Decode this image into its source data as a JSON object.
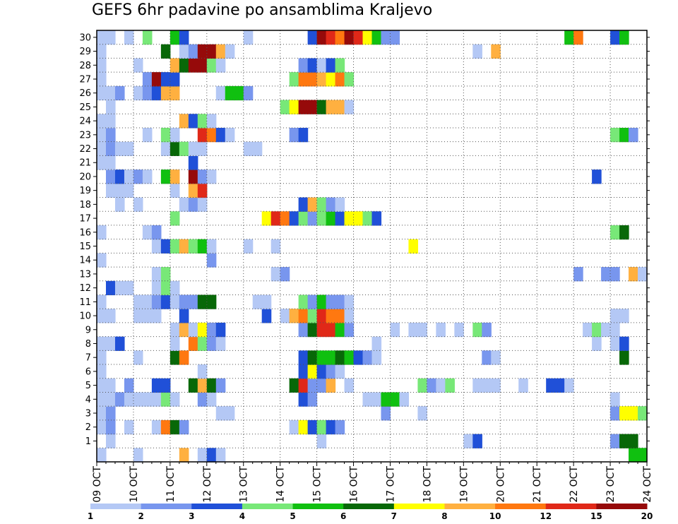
{
  "chart_data": {
    "type": "heatmap",
    "title": "GEFS 6hr padavine po ansamblima Kraljevo",
    "xlabel": "",
    "ylabel": "",
    "x_ticks": [
      "09 OCT",
      "10 OCT",
      "11 OCT",
      "12 OCT",
      "13 OCT",
      "14 OCT",
      "15 OCT",
      "16 OCT",
      "17 OCT",
      "18 OCT",
      "19 OCT",
      "20 OCT",
      "21 OCT",
      "22 OCT",
      "23 OCT",
      "24 OCT"
    ],
    "y_ticks": [
      1,
      2,
      3,
      4,
      5,
      6,
      7,
      8,
      9,
      10,
      11,
      12,
      13,
      14,
      15,
      16,
      17,
      18,
      19,
      20,
      21,
      22,
      23,
      24,
      25,
      26,
      27,
      28,
      29,
      30
    ],
    "x_range": [
      "09 OCT 00Z",
      "24 OCT 00Z"
    ],
    "time_step_hours": 6,
    "grid": "dotted",
    "colorbar": {
      "position": "bottom",
      "labels": [
        "1",
        "2",
        "3",
        "4",
        "5",
        "6",
        "7",
        "8",
        "10",
        "12",
        "15",
        "20"
      ],
      "colors": [
        "#b4c8f5",
        "#7896ee",
        "#2050d8",
        "#78e878",
        "#10c010",
        "#086808",
        "#ffff00",
        "#ffb040",
        "#ff7810",
        "#e02818",
        "#960a0a"
      ]
    },
    "members": {
      "30": [
        [
          0,
          2,
          1
        ],
        [
          3,
          1
        ],
        [
          5,
          4
        ],
        [
          8,
          5
        ],
        [
          9,
          3
        ],
        [
          16,
          1
        ],
        [
          23,
          3
        ],
        [
          24,
          11
        ],
        [
          25,
          10
        ],
        [
          26,
          9
        ],
        [
          27,
          11
        ],
        [
          28,
          10
        ],
        [
          29,
          7
        ],
        [
          30,
          5
        ],
        [
          31,
          2
        ],
        [
          32,
          2
        ],
        [
          51,
          5
        ],
        [
          52,
          9
        ],
        [
          56,
          3
        ],
        [
          57,
          5
        ]
      ],
      "29": [
        [
          0,
          1
        ],
        [
          7,
          6
        ],
        [
          9,
          1
        ],
        [
          10,
          2
        ],
        [
          11,
          11
        ],
        [
          12,
          11
        ],
        [
          13,
          8
        ],
        [
          14,
          1
        ],
        [
          41,
          1
        ],
        [
          43,
          8
        ]
      ],
      "28": [
        [
          0,
          1
        ],
        [
          4,
          1
        ],
        [
          8,
          8
        ],
        [
          9,
          6
        ],
        [
          10,
          11
        ],
        [
          11,
          11
        ],
        [
          12,
          4
        ],
        [
          13,
          1
        ],
        [
          22,
          2
        ],
        [
          23,
          3
        ],
        [
          24,
          1
        ],
        [
          25,
          3
        ],
        [
          26,
          4
        ]
      ],
      "27": [
        [
          0,
          1
        ],
        [
          5,
          2
        ],
        [
          6,
          11
        ],
        [
          7,
          3
        ],
        [
          8,
          3
        ],
        [
          21,
          4
        ],
        [
          22,
          9
        ],
        [
          23,
          9
        ],
        [
          24,
          8
        ],
        [
          25,
          7
        ],
        [
          26,
          9
        ],
        [
          27,
          4
        ]
      ],
      "26": [
        [
          0,
          2,
          1
        ],
        [
          2,
          2
        ],
        [
          4,
          1
        ],
        [
          5,
          2
        ],
        [
          6,
          3
        ],
        [
          7,
          8
        ],
        [
          8,
          8
        ],
        [
          13,
          1
        ],
        [
          14,
          5
        ],
        [
          15,
          5
        ],
        [
          16,
          2
        ]
      ],
      "25": [
        [
          1,
          1
        ],
        [
          20,
          4
        ],
        [
          21,
          7
        ],
        [
          22,
          11
        ],
        [
          23,
          11
        ],
        [
          24,
          6
        ],
        [
          25,
          8
        ],
        [
          26,
          8
        ],
        [
          27,
          1
        ]
      ],
      "24": [
        [
          0,
          2,
          1
        ],
        [
          9,
          8
        ],
        [
          10,
          3
        ],
        [
          11,
          4
        ],
        [
          12,
          1
        ]
      ],
      "23": [
        [
          0,
          2,
          1
        ],
        [
          1,
          2
        ],
        [
          5,
          1
        ],
        [
          7,
          4
        ],
        [
          8,
          1
        ],
        [
          11,
          10
        ],
        [
          12,
          9
        ],
        [
          13,
          3
        ],
        [
          14,
          1
        ],
        [
          21,
          2
        ],
        [
          22,
          3
        ],
        [
          56,
          4
        ],
        [
          57,
          5
        ],
        [
          58,
          2
        ]
      ],
      "22": [
        [
          0,
          1
        ],
        [
          1,
          2
        ],
        [
          2,
          1
        ],
        [
          3,
          1
        ],
        [
          7,
          1
        ],
        [
          8,
          6
        ],
        [
          9,
          4
        ],
        [
          10,
          1
        ],
        [
          11,
          1
        ],
        [
          16,
          1
        ],
        [
          17,
          1
        ]
      ],
      "21": [
        [
          0,
          1
        ],
        [
          1,
          1
        ],
        [
          10,
          3
        ]
      ],
      "20": [
        [
          1,
          2
        ],
        [
          2,
          3
        ],
        [
          3,
          1
        ],
        [
          4,
          2
        ],
        [
          5,
          1
        ],
        [
          7,
          5
        ],
        [
          8,
          8
        ],
        [
          10,
          11
        ],
        [
          11,
          2
        ],
        [
          12,
          1
        ],
        [
          54,
          3
        ]
      ],
      "19": [
        [
          1,
          1
        ],
        [
          2,
          1
        ],
        [
          3,
          1
        ],
        [
          8,
          1
        ],
        [
          10,
          8
        ],
        [
          11,
          10
        ]
      ],
      "18": [
        [
          2,
          1
        ],
        [
          4,
          1
        ],
        [
          9,
          1
        ],
        [
          10,
          2
        ],
        [
          11,
          1
        ],
        [
          22,
          3
        ],
        [
          23,
          8
        ],
        [
          24,
          4
        ],
        [
          25,
          2
        ],
        [
          26,
          1
        ]
      ],
      "17": [
        [
          8,
          4
        ],
        [
          18,
          7
        ],
        [
          19,
          10
        ],
        [
          20,
          9
        ],
        [
          21,
          3
        ],
        [
          22,
          4
        ],
        [
          23,
          2
        ],
        [
          24,
          4
        ],
        [
          25,
          5
        ],
        [
          26,
          3
        ],
        [
          27,
          7
        ],
        [
          28,
          7
        ],
        [
          29,
          4
        ],
        [
          30,
          3
        ]
      ],
      "16": [
        [
          0,
          1
        ],
        [
          5,
          1
        ],
        [
          6,
          2
        ],
        [
          56,
          4
        ],
        [
          57,
          6
        ]
      ],
      "15": [
        [
          6,
          1
        ],
        [
          7,
          3
        ],
        [
          8,
          4
        ],
        [
          9,
          8
        ],
        [
          10,
          4
        ],
        [
          11,
          5
        ],
        [
          12,
          1
        ],
        [
          16,
          1
        ],
        [
          19,
          1
        ],
        [
          34,
          7
        ]
      ],
      "14": [
        [
          0,
          1
        ],
        [
          12,
          2
        ]
      ],
      "13": [
        [
          6,
          1
        ],
        [
          7,
          4
        ],
        [
          19,
          1
        ],
        [
          20,
          2
        ],
        [
          52,
          2
        ],
        [
          55,
          2
        ],
        [
          56,
          2
        ],
        [
          58,
          8
        ],
        [
          59,
          1
        ]
      ],
      "12": [
        [
          1,
          3
        ],
        [
          2,
          1
        ],
        [
          3,
          1
        ],
        [
          6,
          1
        ],
        [
          7,
          4
        ],
        [
          8,
          1
        ]
      ],
      "11": [
        [
          0,
          1
        ],
        [
          4,
          1
        ],
        [
          5,
          1
        ],
        [
          6,
          2
        ],
        [
          7,
          3
        ],
        [
          8,
          1
        ],
        [
          9,
          2
        ],
        [
          10,
          2
        ],
        [
          11,
          6
        ],
        [
          12,
          6
        ],
        [
          17,
          1
        ],
        [
          18,
          1
        ],
        [
          22,
          4
        ],
        [
          23,
          2
        ],
        [
          24,
          5
        ],
        [
          25,
          2
        ],
        [
          26,
          2
        ],
        [
          27,
          1
        ]
      ],
      "10": [
        [
          0,
          2,
          1
        ],
        [
          4,
          1
        ],
        [
          5,
          1
        ],
        [
          6,
          1
        ],
        [
          9,
          3
        ],
        [
          18,
          3
        ],
        [
          20,
          1
        ],
        [
          21,
          8
        ],
        [
          22,
          9
        ],
        [
          23,
          4
        ],
        [
          24,
          10
        ],
        [
          25,
          9
        ],
        [
          26,
          9
        ],
        [
          27,
          1
        ],
        [
          56,
          2,
          1
        ]
      ],
      "9": [
        [
          8,
          1
        ],
        [
          9,
          8
        ],
        [
          10,
          1
        ],
        [
          11,
          7
        ],
        [
          12,
          2
        ],
        [
          13,
          3
        ],
        [
          22,
          2
        ],
        [
          23,
          6
        ],
        [
          24,
          10
        ],
        [
          25,
          10
        ],
        [
          26,
          5
        ],
        [
          27,
          2
        ],
        [
          32,
          1
        ],
        [
          34,
          1
        ],
        [
          35,
          1
        ],
        [
          37,
          1
        ],
        [
          39,
          1
        ],
        [
          41,
          4
        ],
        [
          42,
          2
        ],
        [
          53,
          1
        ],
        [
          54,
          4
        ],
        [
          55,
          1
        ],
        [
          56,
          1
        ]
      ],
      "8": [
        [
          0,
          2,
          1
        ],
        [
          2,
          3
        ],
        [
          8,
          1
        ],
        [
          10,
          9
        ],
        [
          11,
          4
        ],
        [
          12,
          2
        ],
        [
          13,
          1
        ],
        [
          30,
          1
        ],
        [
          54,
          1
        ],
        [
          56,
          1
        ],
        [
          57,
          3
        ]
      ],
      "7": [
        [
          0,
          1
        ],
        [
          4,
          1
        ],
        [
          8,
          6
        ],
        [
          9,
          9
        ],
        [
          22,
          3
        ],
        [
          23,
          6
        ],
        [
          24,
          5
        ],
        [
          25,
          5
        ],
        [
          26,
          6
        ],
        [
          27,
          5
        ],
        [
          28,
          3
        ],
        [
          29,
          2
        ],
        [
          30,
          1
        ],
        [
          42,
          2
        ],
        [
          43,
          1
        ],
        [
          57,
          6
        ]
      ],
      "6": [
        [
          0,
          1
        ],
        [
          11,
          1
        ],
        [
          22,
          3
        ],
        [
          23,
          7
        ],
        [
          24,
          3
        ],
        [
          25,
          2
        ],
        [
          26,
          1
        ]
      ],
      "5": [
        [
          0,
          2,
          1
        ],
        [
          3,
          2
        ],
        [
          6,
          3
        ],
        [
          7,
          3
        ],
        [
          10,
          6
        ],
        [
          11,
          8
        ],
        [
          12,
          6
        ],
        [
          13,
          2
        ],
        [
          21,
          6
        ],
        [
          22,
          10
        ],
        [
          23,
          2
        ],
        [
          24,
          2
        ],
        [
          25,
          8
        ],
        [
          27,
          1
        ],
        [
          35,
          4
        ],
        [
          36,
          2
        ],
        [
          37,
          1
        ],
        [
          38,
          4
        ],
        [
          41,
          1
        ],
        [
          42,
          1
        ],
        [
          43,
          1
        ],
        [
          46,
          1
        ],
        [
          49,
          3
        ],
        [
          50,
          3
        ],
        [
          51,
          1
        ]
      ],
      "4": [
        [
          0,
          1
        ],
        [
          1,
          1
        ],
        [
          2,
          2
        ],
        [
          3,
          1
        ],
        [
          4,
          1
        ],
        [
          5,
          1
        ],
        [
          6,
          1
        ],
        [
          7,
          4
        ],
        [
          8,
          1
        ],
        [
          11,
          2
        ],
        [
          12,
          1
        ],
        [
          22,
          3
        ],
        [
          23,
          2
        ],
        [
          29,
          1
        ],
        [
          30,
          1
        ],
        [
          31,
          5
        ],
        [
          32,
          5
        ],
        [
          33,
          1
        ],
        [
          56,
          1
        ]
      ],
      "3": [
        [
          0,
          1
        ],
        [
          1,
          2
        ],
        [
          13,
          1
        ],
        [
          14,
          1
        ],
        [
          31,
          2
        ],
        [
          35,
          1
        ],
        [
          56,
          2
        ],
        [
          57,
          7
        ],
        [
          58,
          7
        ],
        [
          59,
          4
        ]
      ],
      "2": [
        [
          0,
          1
        ],
        [
          1,
          2
        ],
        [
          3,
          1
        ],
        [
          6,
          1
        ],
        [
          7,
          9
        ],
        [
          8,
          6
        ],
        [
          9,
          2
        ],
        [
          21,
          1
        ],
        [
          22,
          7
        ],
        [
          23,
          3
        ],
        [
          24,
          4
        ],
        [
          25,
          3
        ],
        [
          26,
          2
        ]
      ],
      "1": [
        [
          1,
          1
        ],
        [
          24,
          1
        ],
        [
          40,
          1
        ],
        [
          41,
          3
        ],
        [
          56,
          2
        ],
        [
          57,
          6
        ],
        [
          58,
          6
        ]
      ],
      "0": [
        [
          0,
          1
        ],
        [
          4,
          1
        ],
        [
          9,
          8
        ],
        [
          11,
          1
        ],
        [
          12,
          3
        ],
        [
          13,
          1
        ],
        [
          58,
          5
        ],
        [
          59,
          5
        ]
      ]
    }
  }
}
